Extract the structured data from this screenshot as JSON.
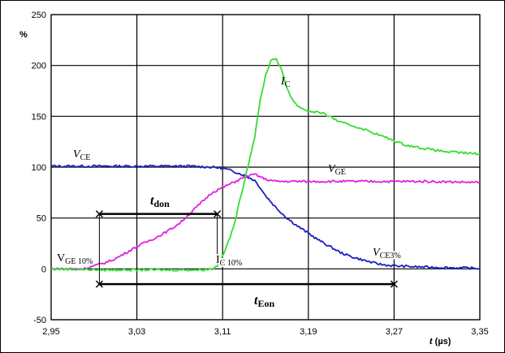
{
  "chart_data": {
    "type": "line",
    "ylabel": "%",
    "xlabel_t": "t",
    "xlabel_unit": " (µs)",
    "x_range": [
      2.95,
      3.35
    ],
    "y_range": [
      -50,
      250
    ],
    "x_ticks": [
      2.95,
      3.03,
      3.11,
      3.19,
      3.27,
      3.35
    ],
    "x_tick_labels": [
      "2,95",
      "3,03",
      "3,11",
      "3,19",
      "3,27",
      "3,35"
    ],
    "y_ticks": [
      -50,
      0,
      50,
      100,
      150,
      200,
      250
    ],
    "y_tick_labels": [
      "-50",
      "0",
      "50",
      "100",
      "150",
      "200",
      "250"
    ],
    "grid": true,
    "series": [
      {
        "name": "V_CE",
        "color": "#1f1fbf",
        "points": [
          [
            2.95,
            101
          ],
          [
            3.0,
            101
          ],
          [
            3.05,
            101
          ],
          [
            3.08,
            101
          ],
          [
            3.1,
            100
          ],
          [
            3.11,
            99
          ],
          [
            3.12,
            96
          ],
          [
            3.13,
            92
          ],
          [
            3.14,
            87
          ],
          [
            3.145,
            80
          ],
          [
            3.15,
            72
          ],
          [
            3.16,
            60
          ],
          [
            3.17,
            50
          ],
          [
            3.18,
            42
          ],
          [
            3.19,
            35
          ],
          [
            3.2,
            28
          ],
          [
            3.21,
            22
          ],
          [
            3.22,
            16
          ],
          [
            3.23,
            12
          ],
          [
            3.24,
            9
          ],
          [
            3.25,
            6
          ],
          [
            3.26,
            4
          ],
          [
            3.27,
            3
          ],
          [
            3.29,
            2
          ],
          [
            3.31,
            1.5
          ],
          [
            3.33,
            1
          ],
          [
            3.35,
            0.5
          ]
        ]
      },
      {
        "name": "V_GE",
        "color": "#e020e0",
        "points": [
          [
            2.95,
            0
          ],
          [
            2.98,
            0
          ],
          [
            2.99,
            3
          ],
          [
            3.0,
            6
          ],
          [
            3.01,
            10
          ],
          [
            3.02,
            16
          ],
          [
            3.03,
            22
          ],
          [
            3.04,
            27
          ],
          [
            3.05,
            32
          ],
          [
            3.06,
            38
          ],
          [
            3.07,
            45
          ],
          [
            3.08,
            55
          ],
          [
            3.09,
            65
          ],
          [
            3.1,
            75
          ],
          [
            3.11,
            80
          ],
          [
            3.12,
            85
          ],
          [
            3.13,
            90
          ],
          [
            3.14,
            93
          ],
          [
            3.15,
            88
          ],
          [
            3.16,
            86
          ],
          [
            3.2,
            86
          ],
          [
            3.25,
            86
          ],
          [
            3.3,
            86
          ],
          [
            3.35,
            85
          ]
        ]
      },
      {
        "name": "I_C",
        "color": "#33dd33",
        "points": [
          [
            2.95,
            0
          ],
          [
            3.0,
            -1
          ],
          [
            3.05,
            -1
          ],
          [
            3.09,
            -1
          ],
          [
            3.1,
            0
          ],
          [
            3.105,
            3
          ],
          [
            3.11,
            12
          ],
          [
            3.12,
            40
          ],
          [
            3.13,
            85
          ],
          [
            3.14,
            130
          ],
          [
            3.145,
            165
          ],
          [
            3.15,
            190
          ],
          [
            3.155,
            205
          ],
          [
            3.16,
            207
          ],
          [
            3.165,
            195
          ],
          [
            3.17,
            178
          ],
          [
            3.175,
            167
          ],
          [
            3.18,
            160
          ],
          [
            3.19,
            155
          ],
          [
            3.2,
            154
          ],
          [
            3.21,
            150
          ],
          [
            3.22,
            144
          ],
          [
            3.24,
            138
          ],
          [
            3.26,
            130
          ],
          [
            3.28,
            122
          ],
          [
            3.3,
            118
          ],
          [
            3.32,
            115
          ],
          [
            3.35,
            113
          ]
        ]
      }
    ],
    "annotations": {
      "vce": {
        "main": "V",
        "sub": "CE"
      },
      "vge": {
        "main": "V",
        "sub": "GE"
      },
      "ic": {
        "main": "I",
        "sub": "C"
      },
      "vge10": {
        "main": "V",
        "sub": "GE 10%"
      },
      "ic10": {
        "main": "I",
        "sub": "C 10%"
      },
      "vce3": {
        "main": "V",
        "sub": "CE3%"
      },
      "tdon": {
        "main": "t",
        "sub": "don"
      },
      "teon": {
        "main": "t",
        "sub": "Eon"
      }
    },
    "markers": {
      "tdon_start": 2.995,
      "tdon_end": 3.105,
      "tdon_level": 54,
      "teon_start": 2.995,
      "teon_end": 3.27,
      "teon_level": -15
    }
  }
}
